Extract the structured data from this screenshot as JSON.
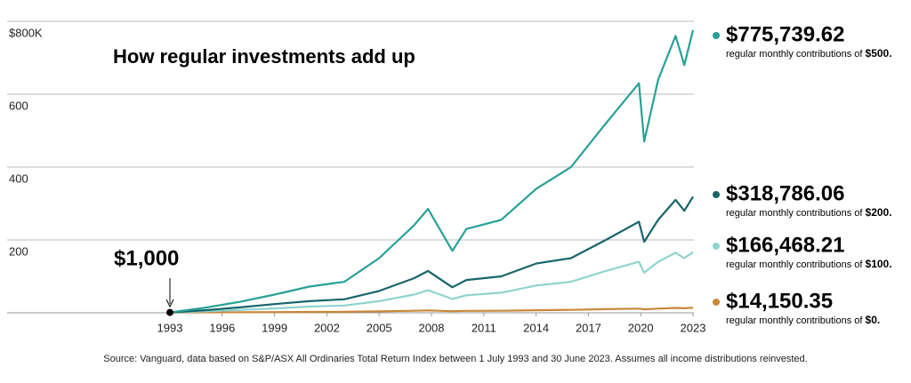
{
  "chart_data": {
    "type": "line",
    "title": "How regular investments add up",
    "source": "Source: Vanguard, data based on S&P/ASX All Ordinaries Total Return Index between 1 July 1993 and 30 June 2023. Assumes all income distributions reinvested.",
    "annotation": "$1,000",
    "legend_prefix": "regular monthly contributions of",
    "x": [
      1993,
      1995,
      1997,
      1999,
      2001,
      2003,
      2005,
      2007,
      2007.8,
      2009.2,
      2010,
      2012,
      2014,
      2016,
      2018,
      2019.9,
      2020.2,
      2021,
      2022,
      2022.5,
      2023
    ],
    "xlim": [
      1993,
      2023
    ],
    "xticks": [
      1993,
      1996,
      1999,
      2002,
      2005,
      2008,
      2011,
      2014,
      2017,
      2020,
      2023
    ],
    "ylim": [
      0,
      800
    ],
    "yticks": [
      200,
      400,
      600,
      {
        "value": 800,
        "label": "$800K"
      }
    ],
    "grid": true,
    "series": [
      {
        "name": "$500.",
        "color": "#27a096",
        "label": "$775,739.62",
        "values": [
          1,
          14,
          30,
          50,
          72,
          85,
          150,
          240,
          285,
          170,
          230,
          255,
          340,
          400,
          520,
          630,
          470,
          640,
          760,
          680,
          775.73962
        ]
      },
      {
        "name": "$200.",
        "color": "#17656b",
        "label": "$318,786.06",
        "values": [
          1,
          7,
          15,
          24,
          32,
          37,
          60,
          95,
          115,
          70,
          90,
          100,
          135,
          150,
          200,
          250,
          195,
          255,
          310,
          280,
          318.78606
        ]
      },
      {
        "name": "$100.",
        "color": "#8fd4cd",
        "label": "$166,468.21",
        "values": [
          1,
          4,
          8,
          12,
          17,
          20,
          32,
          50,
          62,
          38,
          48,
          55,
          75,
          85,
          115,
          140,
          110,
          140,
          165,
          150,
          166.46821
        ]
      },
      {
        "name": "$0.",
        "color": "#c8883a",
        "label": "$14,150.35",
        "values": [
          1,
          1.1,
          1.4,
          1.9,
          2.5,
          2.8,
          4,
          5.5,
          6.5,
          4.5,
          5.3,
          5.5,
          7,
          8,
          10,
          11.5,
          9.5,
          11.5,
          13.5,
          12.5,
          14.15035
        ]
      }
    ]
  }
}
